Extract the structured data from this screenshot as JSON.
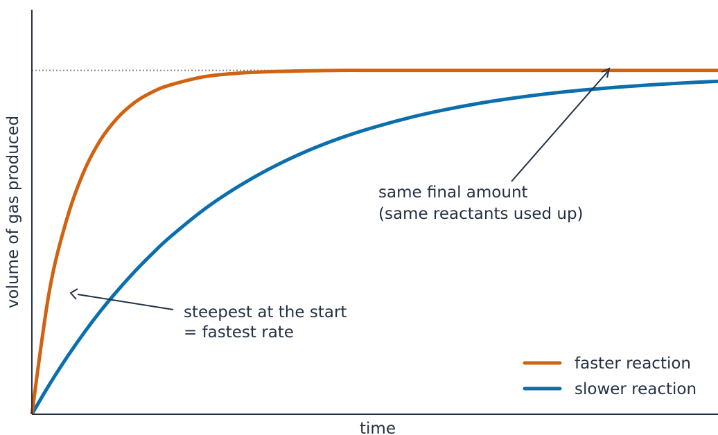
{
  "chart_data": {
    "type": "line",
    "title": "",
    "xlabel": "time",
    "ylabel": "volume of gas produced",
    "xlim": [
      0,
      10
    ],
    "ylim": [
      0,
      1.0
    ],
    "grid": false,
    "legend_position": "bottom-right",
    "final_amount": 0.85,
    "series": [
      {
        "name": "faster reaction",
        "color": "#d1620f",
        "x": [
          0,
          0.25,
          0.5,
          0.75,
          1,
          1.25,
          1.5,
          1.75,
          2,
          2.5,
          3,
          3.5,
          4,
          4.5,
          5,
          5.5,
          6,
          6.5,
          7,
          7.5,
          8,
          8.5,
          9,
          9.5,
          10
        ],
        "values": [
          0,
          0.3,
          0.477,
          0.597,
          0.678,
          0.733,
          0.771,
          0.796,
          0.813,
          0.834,
          0.843,
          0.847,
          0.849,
          0.85,
          0.85,
          0.85,
          0.85,
          0.85,
          0.85,
          0.85,
          0.85,
          0.85,
          0.85,
          0.85,
          0.85
        ]
      },
      {
        "name": "slower reaction",
        "color": "#0b6fad",
        "x": [
          0,
          0.25,
          0.5,
          0.75,
          1,
          1.25,
          1.5,
          1.75,
          2,
          2.5,
          3,
          3.5,
          4,
          4.5,
          5,
          5.5,
          6,
          6.5,
          7,
          7.5,
          8,
          8.5,
          9,
          9.5,
          10
        ],
        "values": [
          0,
          0.072,
          0.138,
          0.199,
          0.255,
          0.306,
          0.353,
          0.396,
          0.436,
          0.505,
          0.562,
          0.61,
          0.65,
          0.683,
          0.71,
          0.733,
          0.752,
          0.768,
          0.781,
          0.792,
          0.801,
          0.808,
          0.814,
          0.819,
          0.823
        ]
      }
    ],
    "annotations": [
      {
        "lines": [
          "steepest at the start",
          "= fastest rate"
        ],
        "points_to": {
          "series": 0,
          "x": 0.5
        }
      },
      {
        "lines": [
          "same final amount",
          "(same reactants used up)"
        ],
        "points_to": {
          "series": 0,
          "x": 7.5
        }
      }
    ]
  }
}
